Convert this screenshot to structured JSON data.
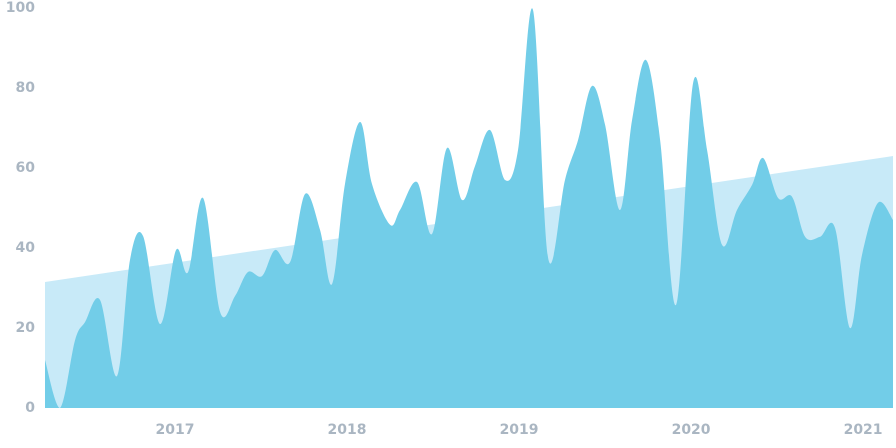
{
  "chart_data": {
    "type": "area",
    "xlim": [
      2016.244,
      2021.174
    ],
    "xticks": [
      2017,
      2018,
      2019,
      2020,
      2021
    ],
    "ylim": [
      0,
      100
    ],
    "yticks": [
      0,
      20,
      40,
      60,
      80,
      100
    ],
    "series": [
      {
        "color": "#c8eaf8",
        "smooth": false,
        "x": [
          2016.244,
          2021.174
        ],
        "values": [
          31.5,
          63
        ]
      },
      {
        "color": "#72cde8",
        "smooth": true,
        "x": [
          2016.244,
          2016.331,
          2016.419,
          2016.477,
          2016.564,
          2016.663,
          2016.738,
          2016.814,
          2016.913,
          2017.006,
          2017.076,
          2017.163,
          2017.262,
          2017.349,
          2017.424,
          2017.506,
          2017.581,
          2017.669,
          2017.756,
          2017.843,
          2017.913,
          2017.988,
          2018.076,
          2018.145,
          2018.25,
          2018.308,
          2018.407,
          2018.494,
          2018.581,
          2018.669,
          2018.744,
          2018.831,
          2018.919,
          2018.994,
          2019.081,
          2019.169,
          2019.267,
          2019.343,
          2019.424,
          2019.5,
          2019.587,
          2019.657,
          2019.738,
          2019.82,
          2019.913,
          2020.012,
          2020.093,
          2020.18,
          2020.267,
          2020.355,
          2020.419,
          2020.506,
          2020.587,
          2020.663,
          2020.75,
          2020.837,
          2020.924,
          2020.994,
          2021.087,
          2021.174
        ],
        "values": [
          12,
          0,
          17,
          21.5,
          27,
          8,
          37,
          43,
          21,
          39.5,
          34,
          52.5,
          24,
          28,
          34,
          33,
          39.5,
          36.5,
          53.5,
          44.5,
          31,
          56,
          71.5,
          56,
          45.8,
          49.5,
          56.5,
          43.5,
          65,
          52,
          60.5,
          69.5,
          57,
          64.5,
          99.5,
          37.5,
          57,
          67,
          80.5,
          70.8,
          49.5,
          72,
          87,
          67,
          25.8,
          81.3,
          64.5,
          40.8,
          49.5,
          55.8,
          62.5,
          52.5,
          52.8,
          42.8,
          42.8,
          45,
          20,
          38.3,
          51.3,
          47
        ]
      }
    ]
  }
}
